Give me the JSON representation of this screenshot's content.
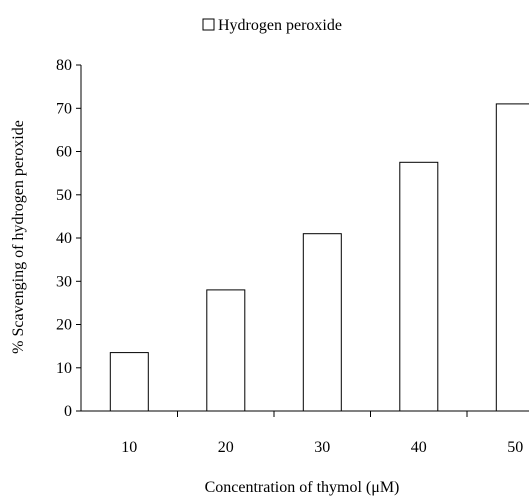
{
  "chart_data": {
    "type": "bar",
    "categories": [
      "10",
      "20",
      "30",
      "40",
      "50"
    ],
    "series": [
      {
        "name": "Hydrogen peroxide",
        "values": [
          13.5,
          28,
          41,
          57.5,
          71
        ]
      }
    ],
    "xlabel": "Concentration of thymol (μM)",
    "ylabel": "% Scavenging of hydrogen peroxide",
    "ylim": [
      0,
      80
    ],
    "yticks": [
      0,
      10,
      20,
      30,
      40,
      50,
      60,
      70,
      80
    ],
    "grid": false,
    "legend_position": "top-center",
    "colors": {
      "bar_fill": "#ffffff",
      "bar_stroke": "#000000",
      "axis": "#000000"
    }
  }
}
